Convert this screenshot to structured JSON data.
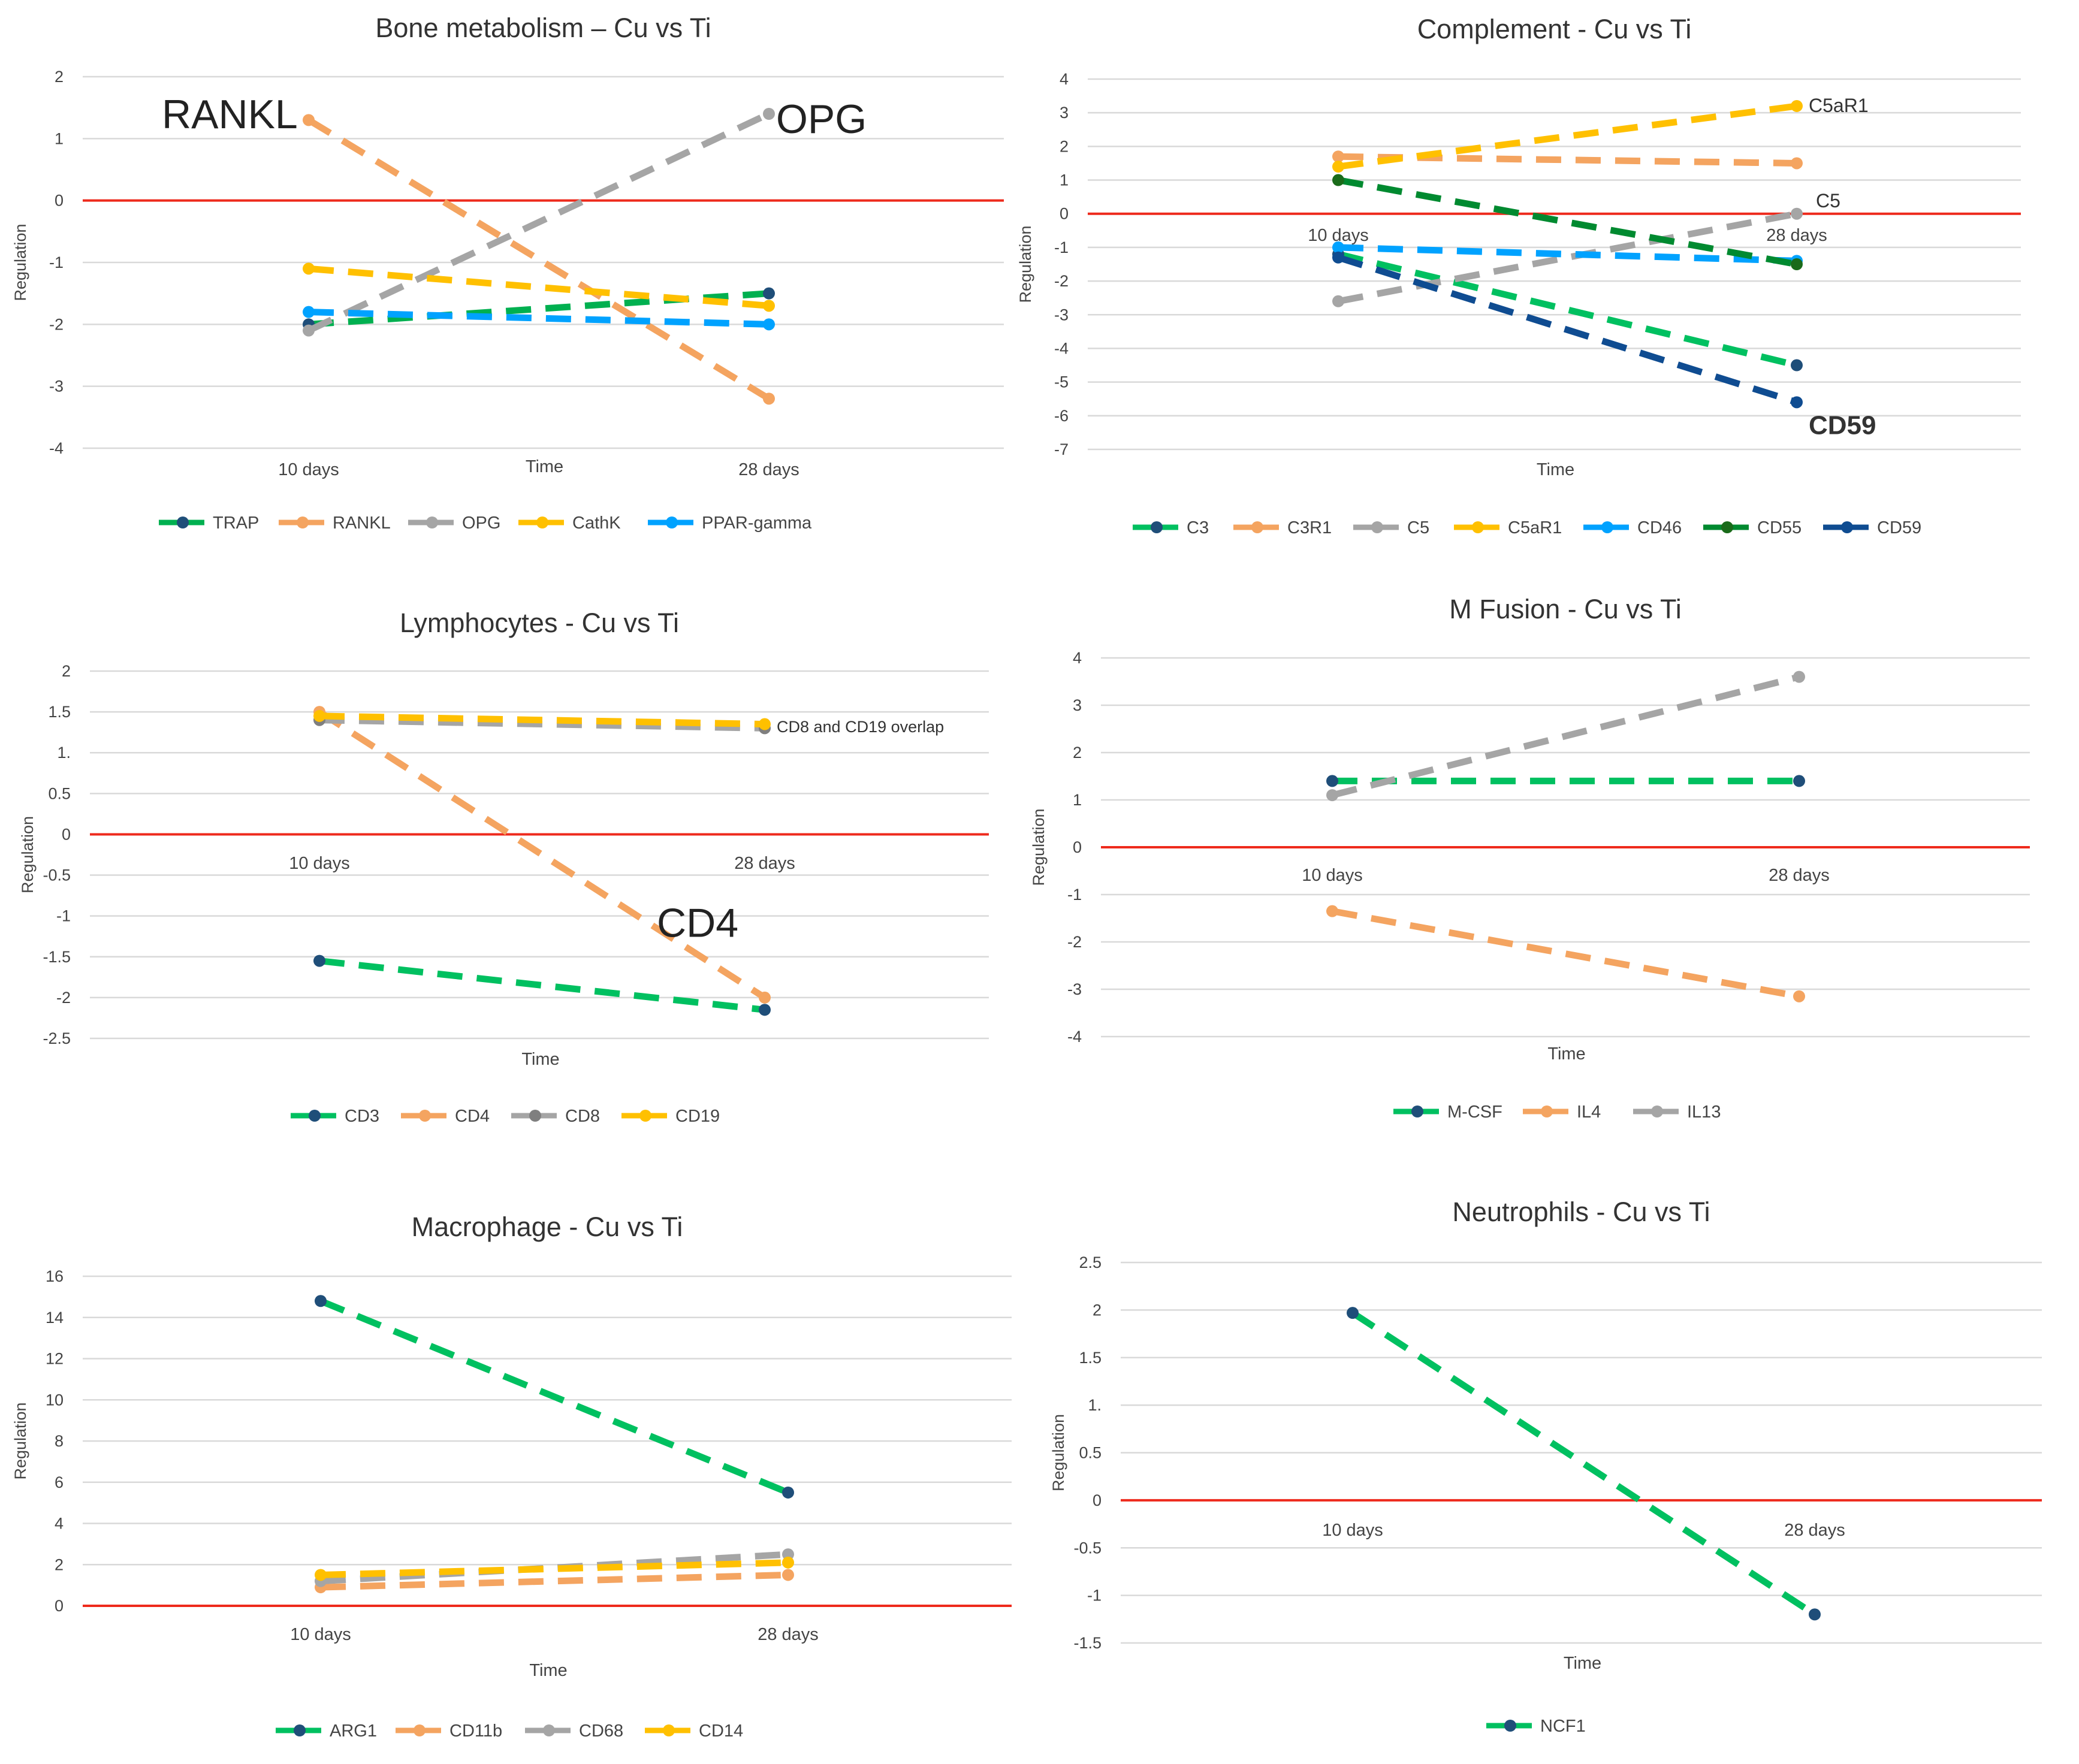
{
  "chart_data": [
    {
      "type": "line",
      "title": "Bone metabolism – Cu vs Ti",
      "xlabel": "Time",
      "ylabel": "Regulation",
      "categories": [
        "10 days",
        "28 days"
      ],
      "ylim": [
        -4,
        2
      ],
      "yticks": [
        2,
        1,
        0,
        -1,
        -2,
        -3,
        -4
      ],
      "ytick_labels": [
        "2",
        "1",
        "0",
        "-1",
        "-2",
        "-3",
        "-4"
      ],
      "series": [
        {
          "name": "TRAP",
          "color": "#00b050",
          "marker": "#1f4e79",
          "values": [
            -2.0,
            -1.5
          ]
        },
        {
          "name": "RANKL",
          "color": "#f4a460",
          "marker": "#f4a460",
          "values": [
            1.3,
            -3.2
          ]
        },
        {
          "name": "OPG",
          "color": "#a5a5a5",
          "marker": "#a5a5a5",
          "values": [
            -2.1,
            1.4
          ]
        },
        {
          "name": "CathK",
          "color": "#ffc000",
          "marker": "#ffc000",
          "values": [
            -1.1,
            -1.7
          ]
        },
        {
          "name": "PPAR-gamma",
          "color": "#00a2ff",
          "marker": "#00a2ff",
          "values": [
            -1.8,
            -2.0
          ]
        }
      ],
      "legend_labels": [
        "TRAP",
        "RANKL",
        "OPG",
        "CathK",
        "PPAR-gamma"
      ],
      "annotations": [
        {
          "text": "RANKL",
          "series": "RANKL",
          "point": 0,
          "size": "large"
        },
        {
          "text": "OPG",
          "series": "OPG",
          "point": 1,
          "size": "large"
        }
      ]
    },
    {
      "type": "line",
      "title": "Complement - Cu vs Ti",
      "xlabel": "Time",
      "ylabel": "Regulation",
      "categories": [
        "10 days",
        "28 days"
      ],
      "ylim": [
        -7,
        4
      ],
      "yticks": [
        4,
        3,
        2,
        1,
        0,
        -1,
        -2,
        -3,
        -4,
        -5,
        -6,
        -7
      ],
      "ytick_labels": [
        "4",
        "3",
        "2",
        "1",
        "0",
        "-1",
        "-2",
        "-3",
        "-4",
        "-5",
        "-6",
        "-7"
      ],
      "series": [
        {
          "name": "C3",
          "color": "#00c060",
          "marker": "#1f4e79",
          "values": [
            -1.2,
            -4.5
          ]
        },
        {
          "name": "C3R1",
          "color": "#f4a460",
          "marker": "#f4a460",
          "values": [
            1.7,
            1.5
          ]
        },
        {
          "name": "C5",
          "color": "#a5a5a5",
          "marker": "#a5a5a5",
          "values": [
            -2.6,
            0.0
          ]
        },
        {
          "name": "C5aR1",
          "color": "#ffc000",
          "marker": "#ffc000",
          "values": [
            1.4,
            3.2
          ]
        },
        {
          "name": "CD46",
          "color": "#00a2ff",
          "marker": "#00a2ff",
          "values": [
            -1.0,
            -1.4
          ]
        },
        {
          "name": "CD55",
          "color": "#008a30",
          "marker": "#1a6b1a",
          "values": [
            1.0,
            -1.5
          ]
        },
        {
          "name": "CD59",
          "color": "#0f4c91",
          "marker": "#0f4c91",
          "values": [
            -1.3,
            -5.6
          ]
        }
      ],
      "legend_labels": [
        "C3",
        "C3R1",
        "C5",
        "C5aR1",
        "CD46",
        "CD55",
        "CD59"
      ],
      "annotations": [
        {
          "text": "C5aR1",
          "series": "C5aR1",
          "point": 1,
          "size": "small"
        },
        {
          "text": "C5",
          "series": "C5",
          "point": 1,
          "size": "small"
        },
        {
          "text": "CD59",
          "series": "CD59",
          "point": 1,
          "size": "bold"
        }
      ]
    },
    {
      "type": "line",
      "title": "Lymphocytes - Cu vs Ti",
      "xlabel": "Time",
      "ylabel": "Regulation",
      "categories": [
        "10 days",
        "28 days"
      ],
      "ylim": [
        -2.5,
        2
      ],
      "yticks": [
        2,
        1.5,
        1,
        0.5,
        0,
        -0.5,
        -1,
        -1.5,
        -2,
        -2.5
      ],
      "ytick_labels": [
        "2",
        "1.5",
        "1.",
        "0.5",
        "0",
        "-0.5",
        "-1",
        "-1.5",
        "-2",
        "-2.5"
      ],
      "series": [
        {
          "name": "CD3",
          "color": "#00c060",
          "marker": "#1f4e79",
          "values": [
            -1.55,
            -2.15
          ]
        },
        {
          "name": "CD4",
          "color": "#f4a460",
          "marker": "#f4a460",
          "values": [
            1.5,
            -2.0
          ]
        },
        {
          "name": "CD8",
          "color": "#a5a5a5",
          "marker": "#7f7f7f",
          "values": [
            1.4,
            1.3
          ]
        },
        {
          "name": "CD19",
          "color": "#ffc000",
          "marker": "#ffc000",
          "values": [
            1.45,
            1.35
          ]
        }
      ],
      "legend_labels": [
        "CD3",
        "CD4",
        "CD8",
        "CD19"
      ],
      "annotations": [
        {
          "text": "CD8 and CD19 overlap",
          "series": "CD19",
          "point": 1,
          "size": "tiny"
        },
        {
          "text": "CD4",
          "series": "CD4",
          "point": 1,
          "size": "large"
        }
      ]
    },
    {
      "type": "line",
      "title": "M Fusion - Cu vs Ti",
      "xlabel": "Time",
      "ylabel": "Regulation",
      "categories": [
        "10 days",
        "28 days"
      ],
      "ylim": [
        -4,
        4
      ],
      "yticks": [
        4,
        3,
        2,
        1,
        0,
        -1,
        -2,
        -3,
        -4
      ],
      "ytick_labels": [
        "4",
        "3",
        "2",
        "1",
        "0",
        "-1",
        "-2",
        "-3",
        "-4"
      ],
      "series": [
        {
          "name": "M-CSF",
          "color": "#00c060",
          "marker": "#1f4e79",
          "values": [
            1.4,
            1.4
          ]
        },
        {
          "name": "IL4",
          "color": "#f4a460",
          "marker": "#f4a460",
          "values": [
            -1.35,
            -3.15
          ]
        },
        {
          "name": "IL13",
          "color": "#a5a5a5",
          "marker": "#a5a5a5",
          "values": [
            1.1,
            3.6
          ]
        }
      ],
      "legend_labels": [
        "M-CSF",
        "IL4",
        "IL13"
      ],
      "annotations": []
    },
    {
      "type": "line",
      "title": "Macrophage - Cu vs Ti",
      "xlabel": "Time",
      "ylabel": "Regulation",
      "categories": [
        "10 days",
        "28 days"
      ],
      "ylim": [
        0,
        16
      ],
      "yticks": [
        16,
        14,
        12,
        10,
        8,
        6,
        4,
        2,
        0
      ],
      "ytick_labels": [
        "16",
        "14",
        "12",
        "10",
        "8",
        "6",
        "4",
        "2",
        "0"
      ],
      "series": [
        {
          "name": "ARG1",
          "color": "#00c060",
          "marker": "#1f4e79",
          "values": [
            14.8,
            5.5
          ]
        },
        {
          "name": "CD11b",
          "color": "#f4a460",
          "marker": "#f4a460",
          "values": [
            0.9,
            1.5
          ]
        },
        {
          "name": "CD68",
          "color": "#a5a5a5",
          "marker": "#a5a5a5",
          "values": [
            1.2,
            2.5
          ]
        },
        {
          "name": "CD14",
          "color": "#ffc000",
          "marker": "#ffc000",
          "values": [
            1.5,
            2.1
          ]
        }
      ],
      "legend_labels": [
        "ARG1",
        "CD11b",
        "CD68",
        "CD14"
      ],
      "annotations": []
    },
    {
      "type": "line",
      "title": "Neutrophils - Cu vs Ti",
      "xlabel": "Time",
      "ylabel": "Regulation",
      "categories": [
        "10 days",
        "28 days"
      ],
      "ylim": [
        -1.5,
        2.5
      ],
      "yticks": [
        2.5,
        2,
        1.5,
        1,
        0.5,
        0,
        -0.5,
        -1,
        -1.5
      ],
      "ytick_labels": [
        "2.5",
        "2",
        "1.5",
        "1.",
        "0.5",
        "0",
        "-0.5",
        "-1",
        "-1.5"
      ],
      "series": [
        {
          "name": "NCF1",
          "color": "#00c060",
          "marker": "#1f4e79",
          "values": [
            1.97,
            -1.2
          ]
        }
      ],
      "legend_labels": [
        "NCF1"
      ],
      "annotations": []
    }
  ]
}
